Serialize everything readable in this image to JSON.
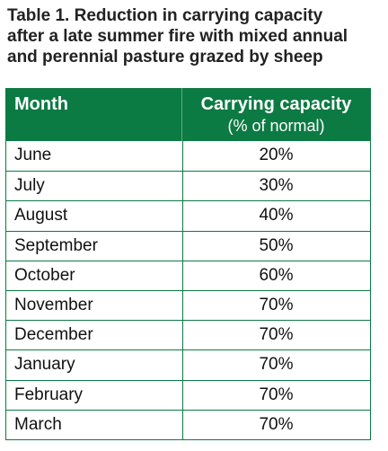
{
  "caption": {
    "line1": "Table 1. Reduction in carrying capacity",
    "line2": "after a late summer fire with mixed annual",
    "line3": "and perennial pasture grazed by sheep"
  },
  "table": {
    "header": {
      "month": "Month",
      "capacity": "Carrying capacity",
      "capacity_unit": "(% of normal)"
    },
    "rows": [
      {
        "month": "June",
        "value": "20%"
      },
      {
        "month": "July",
        "value": "30%"
      },
      {
        "month": "August",
        "value": "40%"
      },
      {
        "month": "September",
        "value": "50%"
      },
      {
        "month": "October",
        "value": "60%"
      },
      {
        "month": "November",
        "value": "70%"
      },
      {
        "month": "December",
        "value": "70%"
      },
      {
        "month": "January",
        "value": "70%"
      },
      {
        "month": "February",
        "value": "70%"
      },
      {
        "month": "March",
        "value": "70%"
      }
    ]
  },
  "colors": {
    "header_bg": "#0c7a43",
    "header_text": "#ffffff",
    "border": "#0c7a43"
  }
}
